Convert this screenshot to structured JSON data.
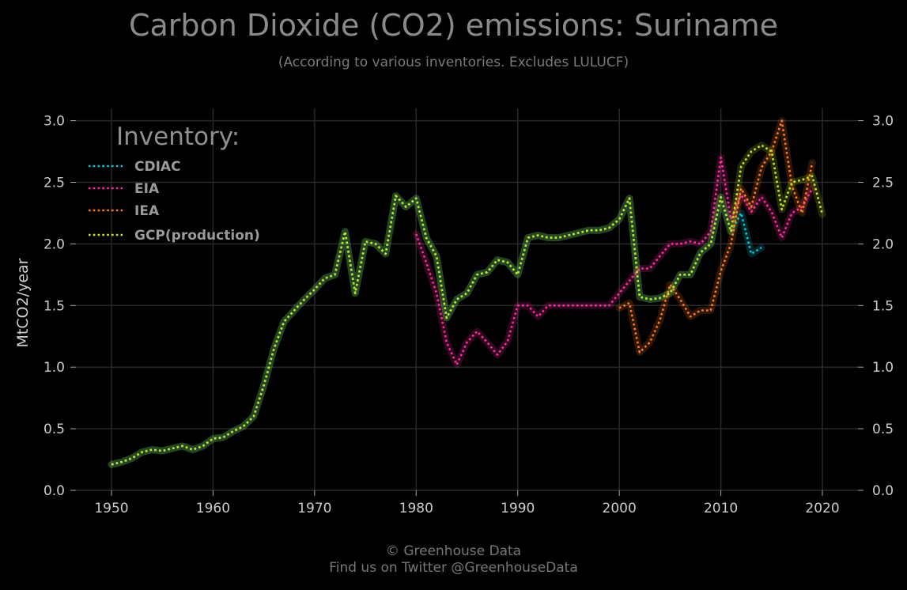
{
  "header": {
    "title": "Carbon Dioxide (CO2) emissions: Suriname",
    "subtitle": "(According to various inventories. Excludes LULUCF)"
  },
  "footer": {
    "line1": "© Greenhouse Data",
    "line2": "Find us on Twitter @GreenhouseData"
  },
  "colors": {
    "background": "#000000",
    "grid": "#2a2a2a",
    "axis_text": "#cccccc",
    "CDIAC": "#00c8d8",
    "EIA": "#ff2aa0",
    "IEA": "#ff7a1a",
    "GCP(production)": "#c8e61e"
  },
  "chart_data": {
    "type": "line",
    "title": "Carbon Dioxide (CO2) emissions: Suriname",
    "subtitle": "(According to various inventories. Excludes LULUCF)",
    "xlabel": "",
    "ylabel": "MtCO2/year",
    "xlim": [
      1946.5,
      2023.5
    ],
    "ylim": [
      0,
      3.1
    ],
    "x_ticks": [
      1950,
      1960,
      1970,
      1980,
      1990,
      2000,
      2010,
      2020
    ],
    "y_ticks": [
      0.0,
      0.5,
      1.0,
      1.5,
      2.0,
      2.5,
      3.0
    ],
    "y_tick_labels": [
      "0.0",
      "0.5",
      "1.0",
      "1.5",
      "2.0",
      "2.5",
      "3.0"
    ],
    "grid": true,
    "line_style": "dotted",
    "legend": {
      "title": "Inventory:",
      "position": "top-left"
    },
    "series": [
      {
        "name": "CDIAC",
        "x": [
          1950,
          1951,
          1952,
          1953,
          1954,
          1955,
          1956,
          1957,
          1958,
          1959,
          1960,
          1961,
          1962,
          1963,
          1964,
          1965,
          1966,
          1967,
          1968,
          1969,
          1970,
          1971,
          1972,
          1973,
          1974,
          1975,
          1976,
          1977,
          1978,
          1979,
          1980,
          1981,
          1982,
          1983,
          1984,
          1985,
          1986,
          1987,
          1988,
          1989,
          1990,
          1991,
          1992,
          1993,
          1994,
          1995,
          1996,
          1997,
          1998,
          1999,
          2000,
          2001,
          2002,
          2003,
          2004,
          2005,
          2006,
          2007,
          2008,
          2009,
          2010,
          2011,
          2012,
          2013,
          2014
        ],
        "y": [
          0.21,
          0.23,
          0.26,
          0.31,
          0.33,
          0.32,
          0.34,
          0.36,
          0.33,
          0.36,
          0.42,
          0.43,
          0.48,
          0.52,
          0.6,
          0.85,
          1.15,
          1.37,
          1.46,
          1.55,
          1.63,
          1.72,
          1.75,
          2.1,
          1.6,
          2.02,
          2.0,
          1.92,
          2.39,
          2.3,
          2.37,
          2.05,
          1.9,
          1.4,
          1.55,
          1.6,
          1.75,
          1.77,
          1.87,
          1.85,
          1.75,
          2.05,
          2.07,
          2.05,
          2.05,
          2.07,
          2.09,
          2.11,
          2.11,
          2.13,
          2.2,
          2.37,
          1.57,
          1.55,
          1.56,
          1.6,
          1.75,
          1.75,
          1.93,
          2.0,
          2.38,
          2.1,
          2.25,
          1.92,
          1.97
        ]
      },
      {
        "name": "EIA",
        "x": [
          1980,
          1981,
          1982,
          1983,
          1984,
          1985,
          1986,
          1987,
          1988,
          1989,
          1990,
          1991,
          1992,
          1993,
          1994,
          1995,
          1996,
          1997,
          1998,
          1999,
          2000,
          2001,
          2002,
          2003,
          2004,
          2005,
          2006,
          2007,
          2008,
          2009,
          2010,
          2011,
          2012,
          2013,
          2014,
          2015,
          2016,
          2017,
          2018,
          2019
        ],
        "y": [
          2.08,
          1.85,
          1.6,
          1.2,
          1.02,
          1.2,
          1.29,
          1.2,
          1.1,
          1.21,
          1.5,
          1.5,
          1.41,
          1.5,
          1.5,
          1.5,
          1.5,
          1.5,
          1.5,
          1.5,
          1.6,
          1.7,
          1.8,
          1.8,
          1.9,
          2.0,
          2.0,
          2.02,
          2.0,
          2.1,
          2.7,
          2.2,
          2.4,
          2.26,
          2.38,
          2.26,
          2.05,
          2.25,
          2.3,
          2.45
        ]
      },
      {
        "name": "IEA",
        "x": [
          2000,
          2001,
          2002,
          2003,
          2004,
          2005,
          2006,
          2007,
          2008,
          2009,
          2010,
          2011,
          2012,
          2013,
          2014,
          2015,
          2016,
          2017,
          2018,
          2019
        ],
        "y": [
          1.48,
          1.52,
          1.12,
          1.2,
          1.38,
          1.67,
          1.55,
          1.41,
          1.46,
          1.46,
          1.78,
          2.0,
          2.45,
          2.3,
          2.62,
          2.75,
          3.0,
          2.47,
          2.25,
          2.66
        ]
      },
      {
        "name": "GCP(production)",
        "x": [
          1950,
          1951,
          1952,
          1953,
          1954,
          1955,
          1956,
          1957,
          1958,
          1959,
          1960,
          1961,
          1962,
          1963,
          1964,
          1965,
          1966,
          1967,
          1968,
          1969,
          1970,
          1971,
          1972,
          1973,
          1974,
          1975,
          1976,
          1977,
          1978,
          1979,
          1980,
          1981,
          1982,
          1983,
          1984,
          1985,
          1986,
          1987,
          1988,
          1989,
          1990,
          1991,
          1992,
          1993,
          1994,
          1995,
          1996,
          1997,
          1998,
          1999,
          2000,
          2001,
          2002,
          2003,
          2004,
          2005,
          2006,
          2007,
          2008,
          2009,
          2010,
          2011,
          2012,
          2013,
          2014,
          2015,
          2016,
          2017,
          2018,
          2019,
          2020
        ],
        "y": [
          0.21,
          0.23,
          0.26,
          0.31,
          0.33,
          0.32,
          0.34,
          0.36,
          0.33,
          0.36,
          0.42,
          0.43,
          0.48,
          0.52,
          0.6,
          0.85,
          1.15,
          1.37,
          1.46,
          1.55,
          1.63,
          1.72,
          1.75,
          2.1,
          1.6,
          2.02,
          2.0,
          1.92,
          2.39,
          2.3,
          2.37,
          2.05,
          1.9,
          1.4,
          1.55,
          1.6,
          1.75,
          1.77,
          1.87,
          1.85,
          1.75,
          2.05,
          2.07,
          2.05,
          2.05,
          2.07,
          2.09,
          2.11,
          2.11,
          2.13,
          2.2,
          2.37,
          1.57,
          1.55,
          1.56,
          1.6,
          1.75,
          1.75,
          1.93,
          2.0,
          2.38,
          2.1,
          2.63,
          2.75,
          2.8,
          2.75,
          2.28,
          2.5,
          2.52,
          2.55,
          2.24
        ]
      }
    ]
  }
}
